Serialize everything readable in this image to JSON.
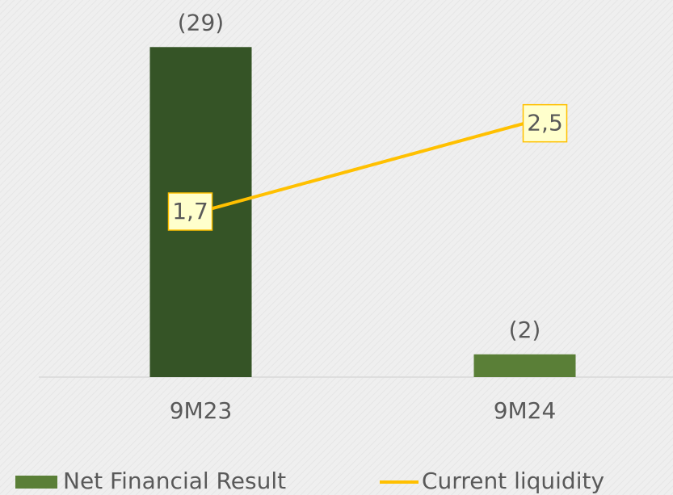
{
  "chart_data": {
    "type": "bar",
    "categories": [
      "9M23",
      "9M24"
    ],
    "ylim": [
      0,
      -32
    ],
    "y2lim": [
      0.2,
      3.5
    ],
    "series": [
      {
        "name": "Net Financial Result",
        "type": "bar",
        "color": "#5a7f37",
        "colors": [
          "#355426",
          "#5a7f37"
        ],
        "values": [
          -29,
          -2
        ],
        "value_labels": [
          "(29)",
          "(2)"
        ]
      },
      {
        "name": "Current liquidity",
        "type": "line",
        "axis": "y2",
        "color": "#ffc000",
        "values": [
          1.7,
          2.5
        ],
        "value_labels": [
          "1,7",
          "2,5"
        ]
      }
    ],
    "legend": "bottom"
  }
}
